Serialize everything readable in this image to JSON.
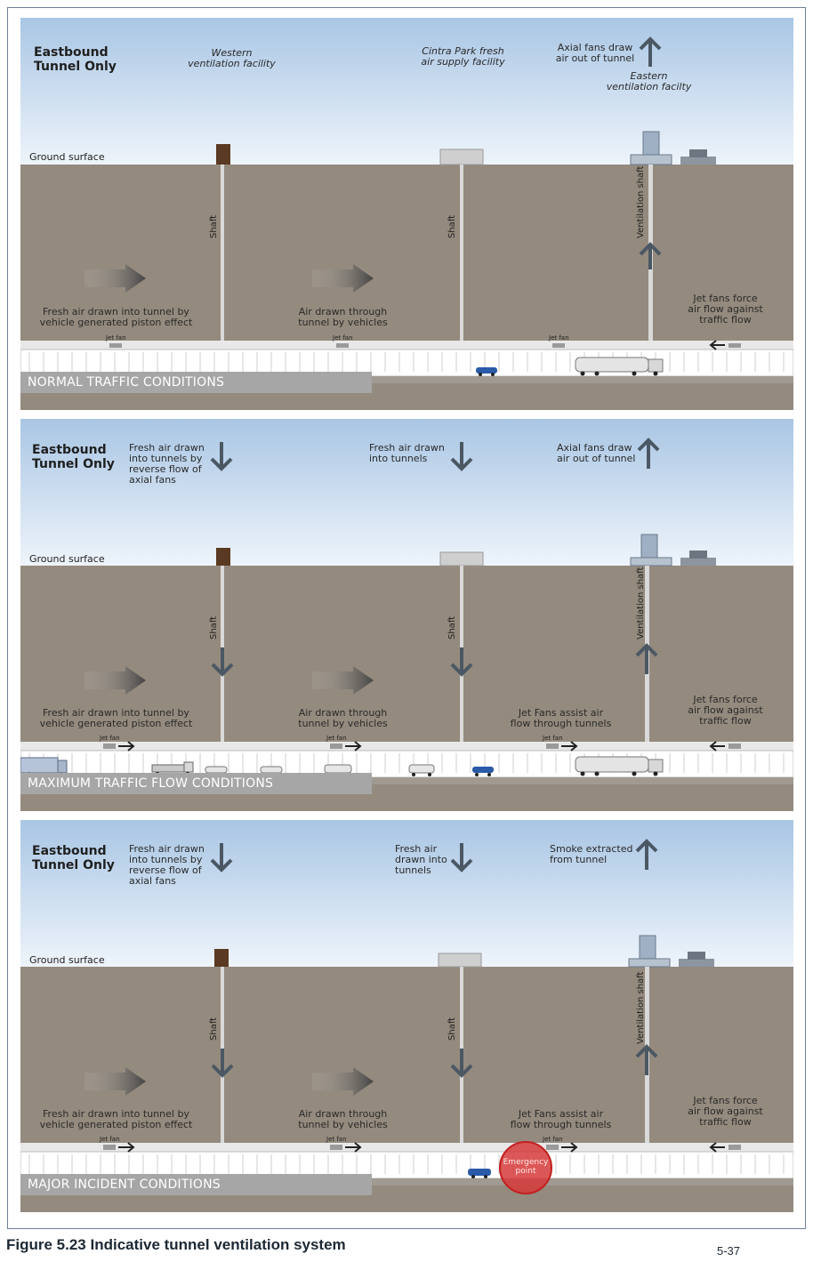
{
  "panels": [
    {
      "title": "Eastbound\nTunnel Only",
      "ground_label": "Ground surface",
      "condition": "NORMAL TRAFFIC CONDITIONS",
      "sky_labels": {
        "western": "Western\nventilation facility",
        "middle": "Cintra Park fresh\nair supply facility",
        "eastern_top": "Axial fans draw\nair out of tunnel",
        "eastern_bottom": "Eastern\nventilation facilty"
      },
      "underground_labels": {
        "left": "Fresh air drawn into tunnel by\nvehicle generated piston effect",
        "middle": "Air drawn through\ntunnel by vehicles",
        "right": "Jet fans force\nair flow against\ntraffic flow"
      },
      "shaft_label": "Shaft",
      "vent_shaft_label": "Ventilation shaft",
      "jet_fan_label": "Jet fan"
    },
    {
      "title": "Eastbound\nTunnel Only",
      "ground_label": "Ground surface",
      "condition": "MAXIMUM TRAFFIC FLOW CONDITIONS",
      "sky_labels": {
        "western": "Fresh air drawn\ninto tunnels by\nreverse flow of\naxial fans",
        "middle": "Fresh air drawn\ninto tunnels",
        "eastern_top": "Axial fans draw\nair out of tunnel"
      },
      "underground_labels": {
        "left": "Fresh air drawn into tunnel by\nvehicle generated piston effect",
        "middle": "Air drawn through\ntunnel by vehicles",
        "middle_right": "Jet Fans assist air\nflow through tunnels",
        "right": "Jet fans force\nair flow against\ntraffic flow"
      },
      "shaft_label": "Shaft",
      "vent_shaft_label": "Ventilation shaft",
      "jet_fan_label": "Jet fan"
    },
    {
      "title": "Eastbound\nTunnel Only",
      "ground_label": "Ground surface",
      "condition": "MAJOR INCIDENT CONDITIONS",
      "sky_labels": {
        "western": "Fresh air drawn\ninto tunnels by\nreverse flow of\naxial fans",
        "middle": "Fresh air\ndrawn into\ntunnels",
        "eastern_top": "Smoke extracted\nfrom tunnel"
      },
      "underground_labels": {
        "left": "Fresh air drawn into tunnel by\nvehicle generated piston effect",
        "middle": "Air drawn through\ntunnel by vehicles",
        "middle_right": "Jet Fans assist air\nflow through tunnels",
        "right": "Jet fans force\nair flow against\ntraffic flow"
      },
      "shaft_label": "Shaft",
      "vent_shaft_label": "Ventilation shaft",
      "jet_fan_label": "Jet fan",
      "emergency_label": "Emergency\npoint"
    }
  ],
  "caption": "Figure 5.23 Indicative tunnel ventilation system",
  "page_number": "5-37",
  "colors": {
    "sky_top": "#a9c6e4",
    "sky_bottom": "#eef4fb",
    "soil": "#948a7e",
    "tunnel": "#ffffff",
    "arrow": "#4b5864",
    "condition_bar": "#a6a6a6",
    "emergency": "#d63a3a"
  }
}
